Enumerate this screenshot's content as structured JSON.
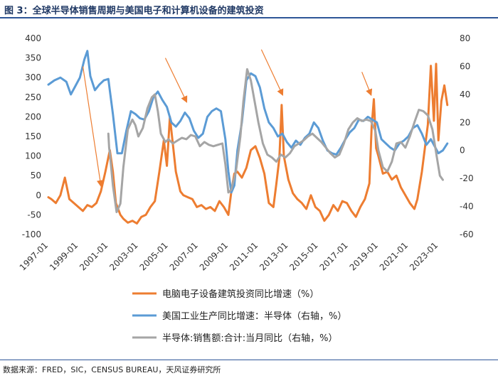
{
  "figure": {
    "title": "图 3：全球半导体销售周期与美国电子和计算机设备的建筑投资",
    "source": "数据来源：FRED，SIC，CENSUS BUREAU，天风证券研究所"
  },
  "chart_data": {
    "type": "line",
    "left_axis": {
      "ylim": [
        -100,
        400
      ],
      "ticks": [
        "400",
        "350",
        "300",
        "250",
        "200",
        "150",
        "100",
        "50",
        "0",
        "-50",
        "-100"
      ]
    },
    "right_axis": {
      "ylim": [
        -60,
        80
      ],
      "ticks": [
        "80",
        "60",
        "40",
        "20",
        "0",
        "-20",
        "-40",
        "-60"
      ]
    },
    "x_axis": {
      "range": [
        1997.0,
        2023.75
      ],
      "ticks": [
        "1997-01",
        "1999-01",
        "2001-01",
        "2003-01",
        "2005-01",
        "2007-01",
        "2009-01",
        "2011-01",
        "2013-01",
        "2015-01",
        "2017-01",
        "2019-01",
        "2021-01",
        "2023-01"
      ]
    },
    "legend_placement": "bottom",
    "series": [
      {
        "name": "电脑电子设备建筑投资同比增速（%）",
        "axis": "left",
        "color": "#ed7d31",
        "points": [
          [
            1997.0,
            -5
          ],
          [
            1997.2,
            -10
          ],
          [
            1997.5,
            -20
          ],
          [
            1997.8,
            0
          ],
          [
            1998.1,
            45
          ],
          [
            1998.4,
            -10
          ],
          [
            1998.7,
            -20
          ],
          [
            1999.0,
            -30
          ],
          [
            1999.3,
            -40
          ],
          [
            1999.6,
            -25
          ],
          [
            1999.9,
            -30
          ],
          [
            2000.2,
            -20
          ],
          [
            2000.5,
            10
          ],
          [
            2000.8,
            60
          ],
          [
            2001.1,
            115
          ],
          [
            2001.3,
            60
          ],
          [
            2001.5,
            -20
          ],
          [
            2001.8,
            -50
          ],
          [
            2002.0,
            -60
          ],
          [
            2002.3,
            -70
          ],
          [
            2002.6,
            -65
          ],
          [
            2002.9,
            -72
          ],
          [
            2003.2,
            -55
          ],
          [
            2003.5,
            -50
          ],
          [
            2003.8,
            -30
          ],
          [
            2004.1,
            -15
          ],
          [
            2004.4,
            60
          ],
          [
            2004.7,
            140
          ],
          [
            2004.9,
            75
          ],
          [
            2005.1,
            200
          ],
          [
            2005.3,
            130
          ],
          [
            2005.5,
            60
          ],
          [
            2005.8,
            10
          ],
          [
            2006.0,
            0
          ],
          [
            2006.3,
            -5
          ],
          [
            2006.6,
            -10
          ],
          [
            2006.9,
            -30
          ],
          [
            2007.2,
            -25
          ],
          [
            2007.5,
            -35
          ],
          [
            2007.8,
            -30
          ],
          [
            2008.1,
            -40
          ],
          [
            2008.4,
            -15
          ],
          [
            2008.7,
            -30
          ],
          [
            2009.0,
            -50
          ],
          [
            2009.2,
            10
          ],
          [
            2009.4,
            55
          ],
          [
            2009.6,
            60
          ],
          [
            2009.9,
            45
          ],
          [
            2010.2,
            70
          ],
          [
            2010.5,
            115
          ],
          [
            2010.8,
            125
          ],
          [
            2011.1,
            95
          ],
          [
            2011.4,
            55
          ],
          [
            2011.7,
            -20
          ],
          [
            2012.0,
            -30
          ],
          [
            2012.2,
            30
          ],
          [
            2012.4,
            95
          ],
          [
            2012.55,
            230
          ],
          [
            2012.7,
            100
          ],
          [
            2013.0,
            40
          ],
          [
            2013.3,
            5
          ],
          [
            2013.6,
            -10
          ],
          [
            2013.9,
            -20
          ],
          [
            2014.2,
            -35
          ],
          [
            2014.5,
            0
          ],
          [
            2014.8,
            -30
          ],
          [
            2015.1,
            -40
          ],
          [
            2015.4,
            -65
          ],
          [
            2015.7,
            -50
          ],
          [
            2016.0,
            -25
          ],
          [
            2016.3,
            -40
          ],
          [
            2016.6,
            -15
          ],
          [
            2016.9,
            -20
          ],
          [
            2017.2,
            -40
          ],
          [
            2017.5,
            -55
          ],
          [
            2017.8,
            -30
          ],
          [
            2018.1,
            -10
          ],
          [
            2018.4,
            30
          ],
          [
            2018.55,
            175
          ],
          [
            2018.7,
            245
          ],
          [
            2018.85,
            120
          ],
          [
            2019.0,
            100
          ],
          [
            2019.3,
            55
          ],
          [
            2019.6,
            60
          ],
          [
            2019.9,
            40
          ],
          [
            2020.2,
            50
          ],
          [
            2020.5,
            20
          ],
          [
            2020.8,
            0
          ],
          [
            2021.1,
            -20
          ],
          [
            2021.4,
            -35
          ],
          [
            2021.6,
            -10
          ],
          [
            2021.9,
            60
          ],
          [
            2022.1,
            120
          ],
          [
            2022.3,
            180
          ],
          [
            2022.5,
            330
          ],
          [
            2022.7,
            190
          ],
          [
            2022.85,
            335
          ],
          [
            2023.0,
            140
          ],
          [
            2023.2,
            240
          ],
          [
            2023.4,
            280
          ],
          [
            2023.6,
            230
          ]
        ]
      },
      {
        "name": "美国工业生产同比增速：半导体（右轴，%）",
        "axis": "right",
        "color": "#5b9bd5",
        "points": [
          [
            1997.0,
            47
          ],
          [
            1997.4,
            50
          ],
          [
            1997.8,
            52
          ],
          [
            1998.2,
            49
          ],
          [
            1998.5,
            40
          ],
          [
            1998.8,
            46
          ],
          [
            1999.1,
            52
          ],
          [
            1999.4,
            65
          ],
          [
            1999.6,
            71
          ],
          [
            1999.8,
            53
          ],
          [
            2000.1,
            43
          ],
          [
            2000.4,
            47
          ],
          [
            2000.7,
            50
          ],
          [
            2001.0,
            51
          ],
          [
            2001.3,
            26
          ],
          [
            2001.6,
            -2
          ],
          [
            2001.9,
            -2
          ],
          [
            2002.2,
            14
          ],
          [
            2002.5,
            28
          ],
          [
            2002.8,
            26
          ],
          [
            2003.1,
            23
          ],
          [
            2003.4,
            22
          ],
          [
            2003.7,
            28
          ],
          [
            2004.0,
            38
          ],
          [
            2004.3,
            42
          ],
          [
            2004.6,
            36
          ],
          [
            2004.9,
            31
          ],
          [
            2005.2,
            20
          ],
          [
            2005.5,
            17
          ],
          [
            2005.8,
            21
          ],
          [
            2006.1,
            27
          ],
          [
            2006.4,
            23
          ],
          [
            2006.7,
            14
          ],
          [
            2007.0,
            9
          ],
          [
            2007.3,
            12
          ],
          [
            2007.6,
            24
          ],
          [
            2007.9,
            28
          ],
          [
            2008.2,
            30
          ],
          [
            2008.5,
            28
          ],
          [
            2008.8,
            8
          ],
          [
            2009.0,
            -15
          ],
          [
            2009.2,
            -30
          ],
          [
            2009.4,
            -25
          ],
          [
            2009.6,
            0
          ],
          [
            2009.9,
            20
          ],
          [
            2010.2,
            50
          ],
          [
            2010.5,
            55
          ],
          [
            2010.8,
            53
          ],
          [
            2011.1,
            45
          ],
          [
            2011.4,
            30
          ],
          [
            2011.7,
            20
          ],
          [
            2012.0,
            16
          ],
          [
            2012.3,
            10
          ],
          [
            2012.6,
            12
          ],
          [
            2012.9,
            6
          ],
          [
            2013.2,
            2
          ],
          [
            2013.5,
            7
          ],
          [
            2013.8,
            4
          ],
          [
            2014.1,
            9
          ],
          [
            2014.4,
            12
          ],
          [
            2014.7,
            20
          ],
          [
            2015.0,
            16
          ],
          [
            2015.3,
            7
          ],
          [
            2015.6,
            0
          ],
          [
            2015.9,
            -2
          ],
          [
            2016.2,
            -3
          ],
          [
            2016.5,
            2
          ],
          [
            2016.8,
            8
          ],
          [
            2017.1,
            13
          ],
          [
            2017.4,
            16
          ],
          [
            2017.7,
            22
          ],
          [
            2018.0,
            21
          ],
          [
            2018.3,
            24
          ],
          [
            2018.6,
            22
          ],
          [
            2018.9,
            20
          ],
          [
            2019.2,
            8
          ],
          [
            2019.5,
            5
          ],
          [
            2019.8,
            2
          ],
          [
            2020.1,
            0
          ],
          [
            2020.4,
            5
          ],
          [
            2020.7,
            7
          ],
          [
            2021.0,
            10
          ],
          [
            2021.3,
            16
          ],
          [
            2021.6,
            18
          ],
          [
            2021.9,
            12
          ],
          [
            2022.2,
            4
          ],
          [
            2022.5,
            8
          ],
          [
            2022.8,
            2
          ],
          [
            2023.0,
            -2
          ],
          [
            2023.3,
            0
          ],
          [
            2023.6,
            5
          ]
        ]
      },
      {
        "name": "半导体:销售额:合计:当月同比（右轴，%）",
        "axis": "right",
        "color": "#a5a5a5",
        "points": [
          [
            2001.0,
            12
          ],
          [
            2001.05,
            2
          ],
          [
            2001.1,
            -2
          ],
          [
            2001.3,
            -25
          ],
          [
            2001.55,
            -44
          ],
          [
            2001.8,
            -38
          ],
          [
            2002.0,
            -12
          ],
          [
            2002.3,
            15
          ],
          [
            2002.6,
            22
          ],
          [
            2002.8,
            18
          ],
          [
            2003.0,
            10
          ],
          [
            2003.3,
            16
          ],
          [
            2003.6,
            30
          ],
          [
            2003.9,
            38
          ],
          [
            2004.1,
            40
          ],
          [
            2004.3,
            28
          ],
          [
            2004.5,
            12
          ],
          [
            2004.8,
            6
          ],
          [
            2005.0,
            8
          ],
          [
            2005.3,
            5
          ],
          [
            2005.6,
            7
          ],
          [
            2005.9,
            9
          ],
          [
            2006.2,
            8
          ],
          [
            2006.5,
            11
          ],
          [
            2006.8,
            10
          ],
          [
            2007.1,
            3
          ],
          [
            2007.4,
            6
          ],
          [
            2007.7,
            4
          ],
          [
            2008.0,
            3
          ],
          [
            2008.3,
            4
          ],
          [
            2008.6,
            5
          ],
          [
            2008.8,
            -10
          ],
          [
            2009.0,
            -30
          ],
          [
            2009.2,
            -28
          ],
          [
            2009.5,
            -15
          ],
          [
            2009.8,
            10
          ],
          [
            2010.0,
            35
          ],
          [
            2010.25,
            58
          ],
          [
            2010.5,
            50
          ],
          [
            2010.75,
            35
          ],
          [
            2011.0,
            20
          ],
          [
            2011.3,
            5
          ],
          [
            2011.6,
            -3
          ],
          [
            2011.9,
            -5
          ],
          [
            2012.2,
            -8
          ],
          [
            2012.5,
            -3
          ],
          [
            2012.8,
            -5
          ],
          [
            2013.1,
            -2
          ],
          [
            2013.4,
            3
          ],
          [
            2013.7,
            5
          ],
          [
            2014.0,
            7
          ],
          [
            2014.3,
            10
          ],
          [
            2014.6,
            12
          ],
          [
            2014.9,
            9
          ],
          [
            2015.2,
            6
          ],
          [
            2015.5,
            2
          ],
          [
            2015.8,
            -2
          ],
          [
            2016.1,
            -5
          ],
          [
            2016.4,
            -3
          ],
          [
            2016.7,
            5
          ],
          [
            2017.0,
            15
          ],
          [
            2017.3,
            20
          ],
          [
            2017.6,
            23
          ],
          [
            2017.9,
            21
          ],
          [
            2018.2,
            22
          ],
          [
            2018.5,
            21
          ],
          [
            2018.8,
            14
          ],
          [
            2019.0,
            0
          ],
          [
            2019.3,
            -12
          ],
          [
            2019.6,
            -15
          ],
          [
            2019.9,
            -8
          ],
          [
            2020.2,
            5
          ],
          [
            2020.5,
            6
          ],
          [
            2020.8,
            2
          ],
          [
            2021.1,
            10
          ],
          [
            2021.4,
            20
          ],
          [
            2021.7,
            29
          ],
          [
            2022.0,
            28
          ],
          [
            2022.3,
            25
          ],
          [
            2022.6,
            15
          ],
          [
            2022.9,
            -5
          ],
          [
            2023.1,
            -18
          ],
          [
            2023.3,
            -21
          ]
        ]
      }
    ],
    "annotations": [
      {
        "type": "arrow",
        "from": [
          1999.3,
          60
        ],
        "to": [
          2000.5,
          -25
        ],
        "axis": "right"
      },
      {
        "type": "arrow",
        "from": [
          2004.8,
          66
        ],
        "to": [
          2006.2,
          35
        ],
        "axis": "right"
      },
      {
        "type": "arrow",
        "from": [
          2011.2,
          72
        ],
        "to": [
          2012.6,
          40
        ],
        "axis": "right"
      },
      {
        "type": "arrow",
        "from": [
          2017.9,
          56
        ],
        "to": [
          2018.5,
          40
        ],
        "axis": "right"
      }
    ]
  }
}
